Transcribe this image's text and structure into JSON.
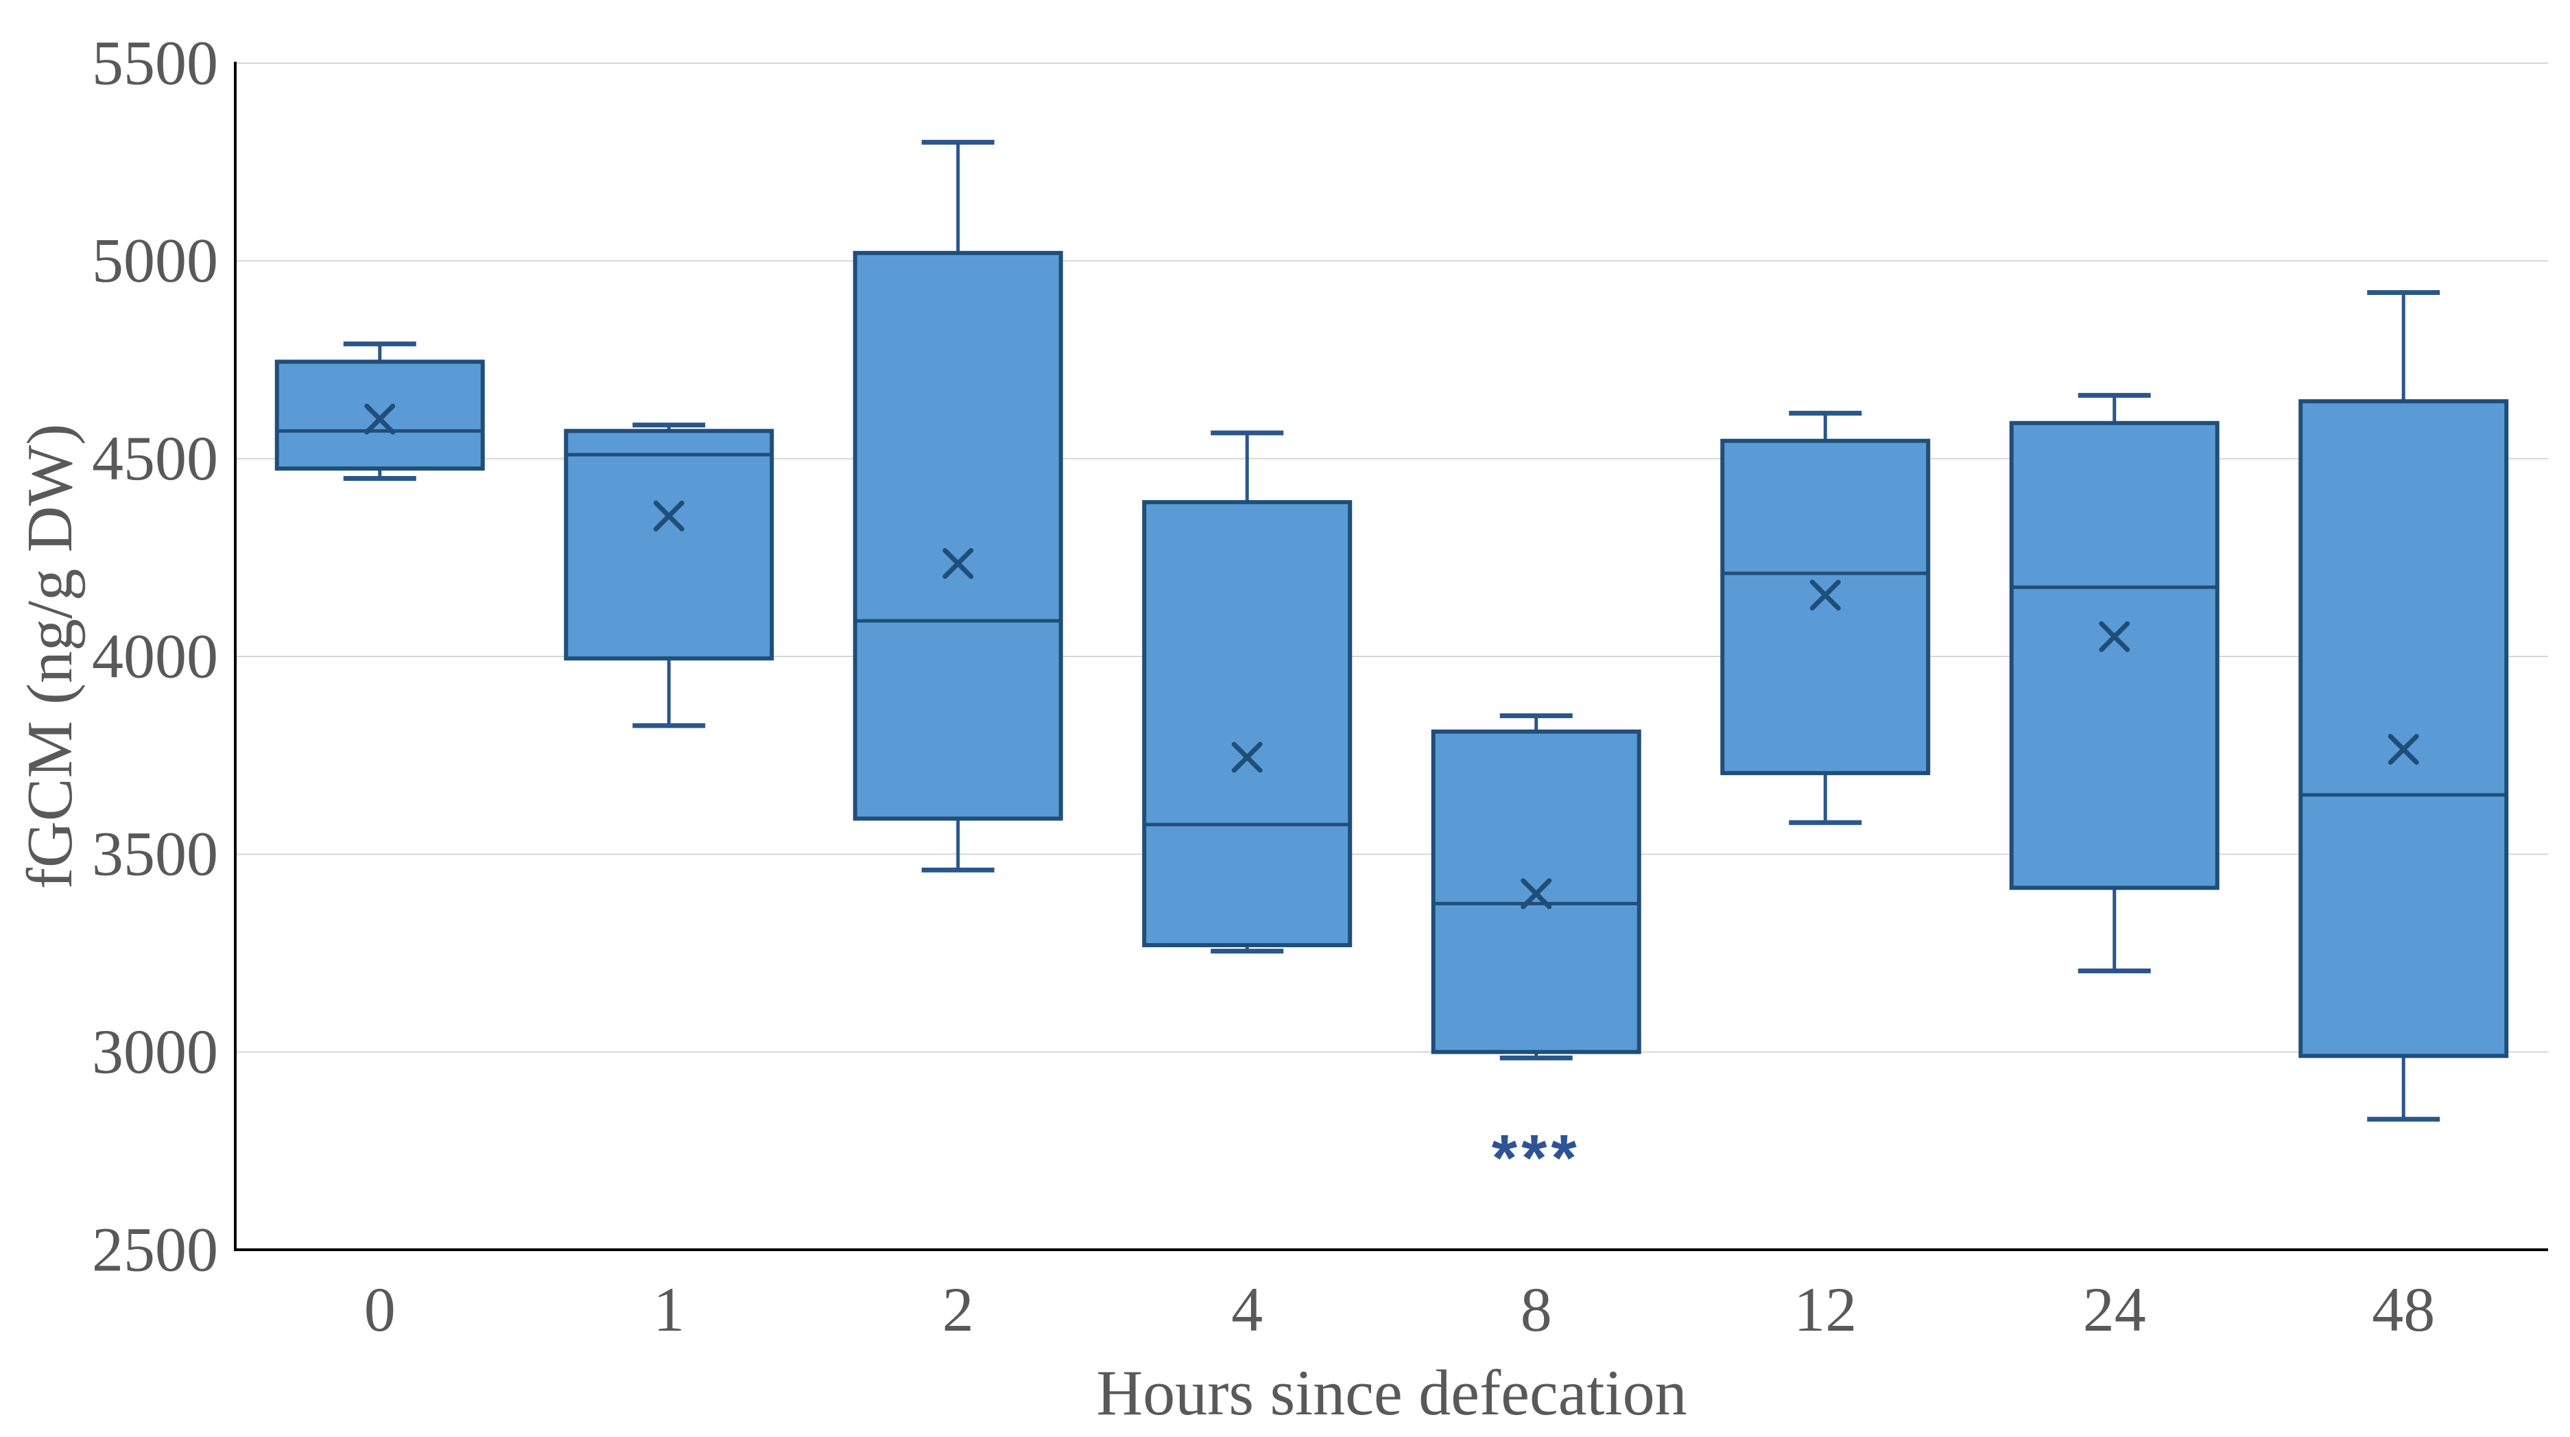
{
  "chart_data": {
    "type": "box",
    "title": "",
    "xlabel": "Hours since defecation",
    "ylabel": "fGCM (ng/g DW)",
    "ylim": [
      2500,
      5500
    ],
    "ytick_step": 500,
    "ytick_labels": [
      "2500",
      "3000",
      "3500",
      "4000",
      "4500",
      "5000",
      "5500"
    ],
    "categories": [
      "0",
      "1",
      "2",
      "4",
      "8",
      "12",
      "24",
      "48"
    ],
    "boxes": [
      {
        "category": "0",
        "low": 4450,
        "q1": 4475,
        "median": 4570,
        "q3": 4745,
        "high": 4790,
        "mean": 4600
      },
      {
        "category": "1",
        "low": 3825,
        "q1": 3995,
        "median": 4510,
        "q3": 4570,
        "high": 4585,
        "mean": 4355
      },
      {
        "category": "2",
        "low": 3460,
        "q1": 3590,
        "median": 4090,
        "q3": 5020,
        "high": 5300,
        "mean": 4235
      },
      {
        "category": "4",
        "low": 3255,
        "q1": 3270,
        "median": 3575,
        "q3": 4390,
        "high": 4565,
        "mean": 3745
      },
      {
        "category": "8",
        "low": 2985,
        "q1": 3000,
        "median": 3375,
        "q3": 3810,
        "high": 3850,
        "mean": 3400
      },
      {
        "category": "12",
        "low": 3580,
        "q1": 3705,
        "median": 4210,
        "q3": 4545,
        "high": 4615,
        "mean": 4155
      },
      {
        "category": "24",
        "low": 3205,
        "q1": 3415,
        "median": 4175,
        "q3": 4590,
        "high": 4660,
        "mean": 4050
      },
      {
        "category": "48",
        "low": 2830,
        "q1": 2990,
        "median": 3650,
        "q3": 4645,
        "high": 4920,
        "mean": 3765
      }
    ],
    "annotations": [
      {
        "category": "8",
        "text": "***",
        "y_value": 2760
      }
    ],
    "legend": "none",
    "grid": "horizontal"
  },
  "colors": {
    "background": "#FFFFFF",
    "box_fill": "#5B9BD5",
    "box_border": "#1F4E79",
    "whisker": "#2A568A",
    "median_line": "#1F4E79",
    "mean_marker": "#1F4E79",
    "gridline": "#D6D6D6",
    "axis_line": "#000000",
    "tick_label": "#595959",
    "axis_title": "#595959",
    "significance": "#2E5395"
  }
}
